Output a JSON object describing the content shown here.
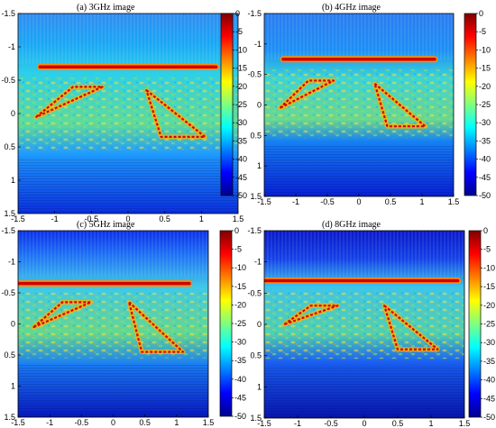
{
  "figure": {
    "panels": [
      {
        "title": "(a)  3GHz image",
        "x_ticks": [
          "-1.5",
          "-1",
          "-0.5",
          "0",
          "0.5",
          "1",
          "1.5"
        ],
        "y_ticks": [
          "-1.5",
          "-1",
          "-0.5",
          "0",
          "0.5",
          "1",
          "1.5"
        ],
        "colorbar_ticks": [
          "0",
          "-5",
          "-10",
          "-15",
          "-20",
          "-25",
          "-30",
          "-35",
          "-40",
          "-45",
          "-50"
        ]
      },
      {
        "title": "(b) 4GHz image",
        "x_ticks": [
          "-1.5",
          "-1",
          "-0.5",
          "0",
          "0.5",
          "1",
          "1.5"
        ],
        "y_ticks": [
          "-1.5",
          "-1",
          "-0.5",
          "0",
          "0.5",
          "1",
          "1.5"
        ],
        "colorbar_ticks": [
          "0",
          "-5",
          "-10",
          "-15",
          "-20",
          "-25",
          "-30",
          "-35",
          "-40",
          "-45",
          "-50"
        ]
      },
      {
        "title": "(c)  5GHz image",
        "x_ticks": [
          "-1.5",
          "-1",
          "-0.5",
          "0",
          "0.5",
          "1",
          "1.5"
        ],
        "y_ticks": [
          "-1.5",
          "-1",
          "-0.5",
          "0",
          "0.5",
          "1",
          "1.5"
        ],
        "colorbar_ticks": [
          "0",
          "-5",
          "-10",
          "-15",
          "-20",
          "-25",
          "-30",
          "-35",
          "-40",
          "-45",
          "-50"
        ]
      },
      {
        "title": "(d)  8GHz image",
        "x_ticks": [
          "-1.5",
          "-1",
          "-0.5",
          "0",
          "0.5",
          "1",
          "1.5"
        ],
        "y_ticks": [
          "-1.5",
          "-1",
          "-0.5",
          "0",
          "0.5",
          "1",
          "1.5"
        ],
        "colorbar_ticks": [
          "0",
          "-5",
          "-10",
          "-15",
          "-20",
          "-25",
          "-30",
          "-35",
          "-40",
          "-45",
          "-50"
        ]
      }
    ]
  },
  "chart_data": [
    {
      "type": "heatmap",
      "title": "(a)  3GHz image",
      "xlim": [
        -1.5,
        1.5
      ],
      "ylim": [
        -1.5,
        1.5
      ],
      "y_reversed": true,
      "colorbar_range": [
        -50,
        0
      ],
      "colormap": "jet",
      "grid": false,
      "features": {
        "bar_y": -0.7,
        "bar_x": [
          -1.2,
          1.2
        ],
        "left_triangle": [
          [
            -1.25,
            0.05
          ],
          [
            -0.75,
            -0.4
          ],
          [
            -0.35,
            -0.4
          ]
        ],
        "right_triangle": [
          [
            0.25,
            -0.35
          ],
          [
            1.05,
            0.35
          ],
          [
            0.45,
            0.35
          ]
        ]
      }
    },
    {
      "type": "heatmap",
      "title": "(b) 4GHz image",
      "xlim": [
        -1.5,
        1.5
      ],
      "ylim": [
        -1.5,
        1.5
      ],
      "y_reversed": true,
      "colorbar_range": [
        -50,
        0
      ],
      "colormap": "jet",
      "grid": false,
      "features": {
        "bar_y": -0.75,
        "bar_x": [
          -1.2,
          1.2
        ],
        "left_triangle": [
          [
            -1.25,
            0.05
          ],
          [
            -0.8,
            -0.4
          ],
          [
            -0.4,
            -0.4
          ]
        ],
        "right_triangle": [
          [
            0.25,
            -0.35
          ],
          [
            1.05,
            0.35
          ],
          [
            0.45,
            0.35
          ]
        ]
      }
    },
    {
      "type": "heatmap",
      "title": "(c)  5GHz image",
      "xlim": [
        -1.5,
        1.5
      ],
      "ylim": [
        -1.5,
        1.5
      ],
      "y_reversed": true,
      "colorbar_range": [
        -50,
        0
      ],
      "colormap": "jet",
      "grid": false,
      "features": {
        "bar_y": -0.65,
        "bar_x": [
          -1.5,
          1.2
        ],
        "left_triangle": [
          [
            -1.25,
            0.05
          ],
          [
            -0.8,
            -0.35
          ],
          [
            -0.35,
            -0.35
          ]
        ],
        "right_triangle": [
          [
            0.25,
            -0.35
          ],
          [
            1.1,
            0.45
          ],
          [
            0.45,
            0.45
          ]
        ]
      }
    },
    {
      "type": "heatmap",
      "title": "(d)  8GHz image",
      "xlim": [
        -1.5,
        1.5
      ],
      "ylim": [
        -1.5,
        1.5
      ],
      "y_reversed": true,
      "colorbar_range": [
        -50,
        0
      ],
      "colormap": "jet",
      "grid": false,
      "features": {
        "bar_y": -0.7,
        "bar_x": [
          -1.5,
          1.4
        ],
        "left_triangle": [
          [
            -1.2,
            0.0
          ],
          [
            -0.8,
            -0.3
          ],
          [
            -0.4,
            -0.3
          ]
        ],
        "right_triangle": [
          [
            0.3,
            -0.3
          ],
          [
            1.1,
            0.4
          ],
          [
            0.5,
            0.4
          ]
        ]
      }
    }
  ]
}
